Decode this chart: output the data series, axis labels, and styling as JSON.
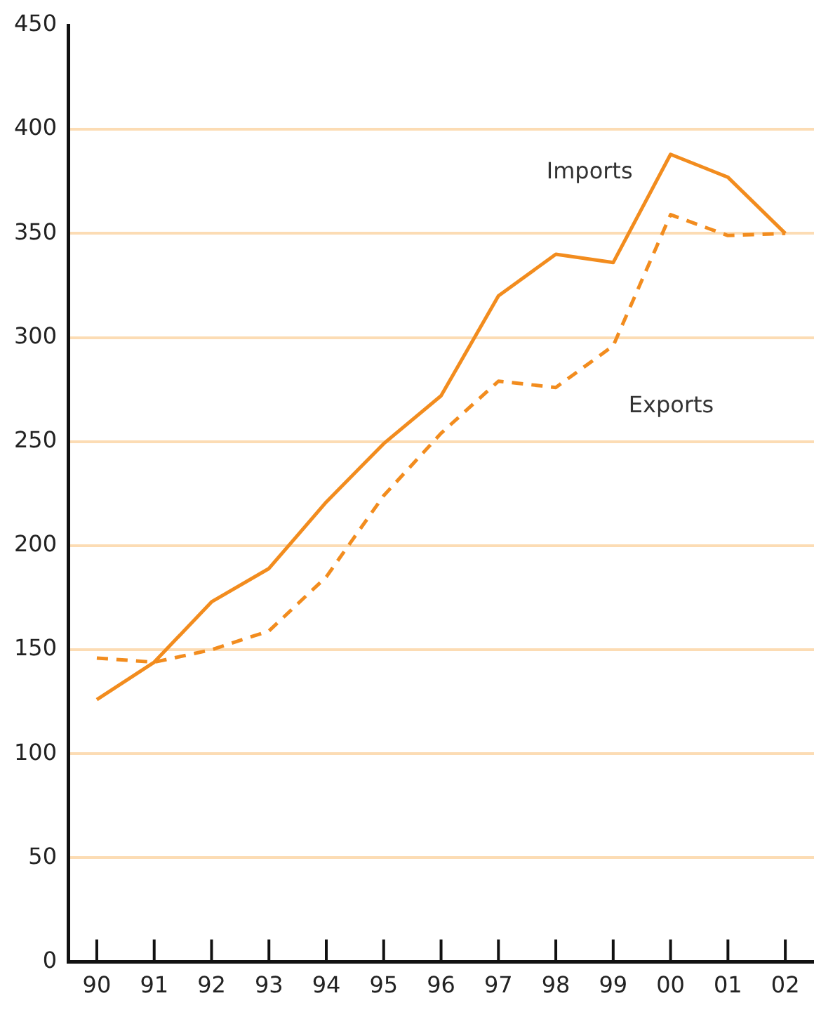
{
  "chart_data": {
    "type": "line",
    "categories": [
      "90",
      "91",
      "92",
      "93",
      "94",
      "95",
      "96",
      "97",
      "98",
      "99",
      "00",
      "01",
      "02"
    ],
    "series": [
      {
        "name": "Imports",
        "color": "#f28c1e",
        "line_style": "solid",
        "values": [
          126,
          144,
          173,
          189,
          221,
          249,
          272,
          320,
          340,
          336,
          388,
          377,
          350
        ]
      },
      {
        "name": "Exports",
        "color": "#f28c1e",
        "line_style": "dashed",
        "values": [
          146,
          144,
          150,
          159,
          185,
          224,
          254,
          279,
          276,
          296,
          359,
          349,
          350
        ]
      }
    ],
    "ylim": [
      0,
      450
    ],
    "yticks": [
      0,
      50,
      100,
      150,
      200,
      250,
      300,
      350,
      400,
      450
    ],
    "grid": "y",
    "legend": false,
    "marker": "none"
  }
}
